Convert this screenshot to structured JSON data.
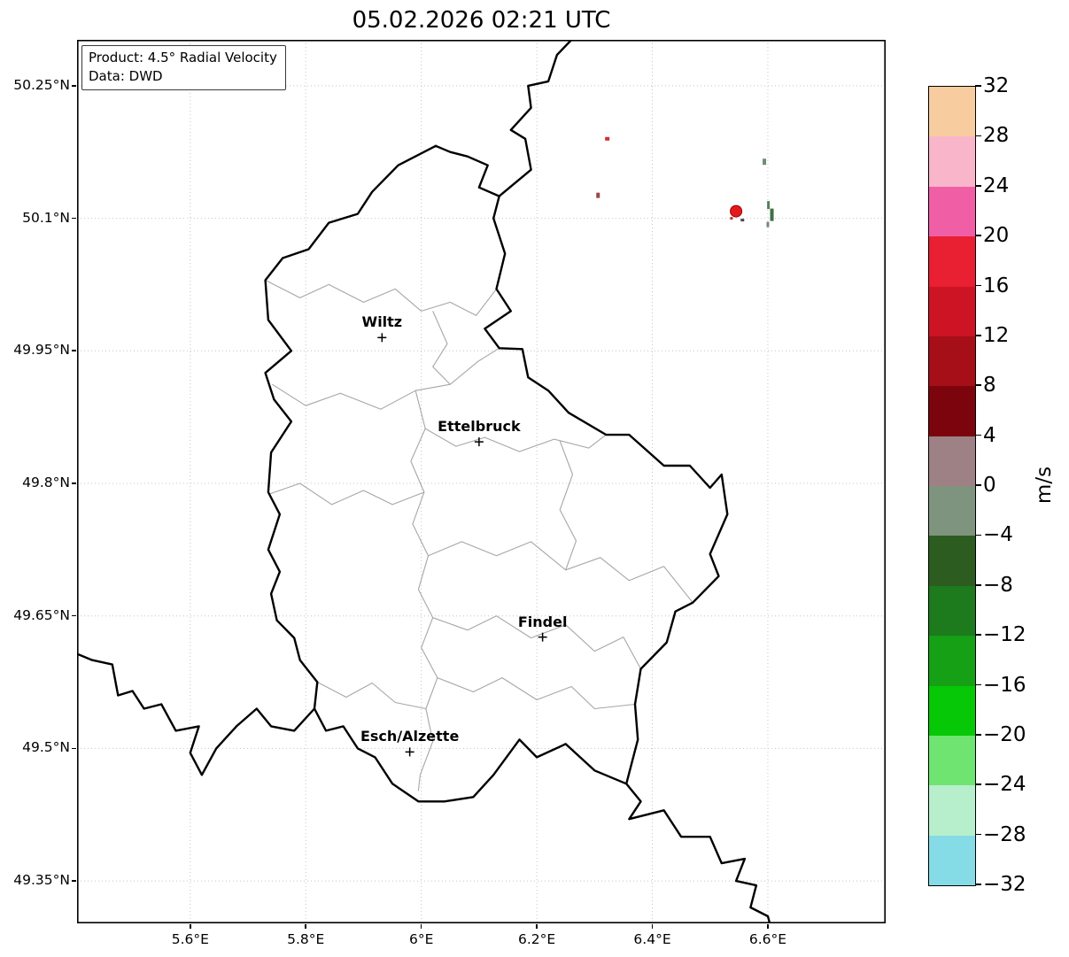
{
  "title": "05.02.2026 02:21 UTC",
  "annotation": {
    "product": "Product: 4.5° Radial Velocity",
    "data_source": "Data: DWD"
  },
  "chart_data": {
    "type": "heatmap",
    "subtype": "radar-radial-velocity-map",
    "title": "05.02.2026 02:21 UTC",
    "units": "m/s",
    "grid": true,
    "background": "#ffffff",
    "lon_range": [
      5.404,
      6.804
    ],
    "lat_range": [
      49.302,
      50.302
    ],
    "x_ticks": [
      {
        "lon": 5.6,
        "label": "5.6°E"
      },
      {
        "lon": 5.8,
        "label": "5.8°E"
      },
      {
        "lon": 6.0,
        "label": "6°E"
      },
      {
        "lon": 6.2,
        "label": "6.2°E"
      },
      {
        "lon": 6.4,
        "label": "6.4°E"
      },
      {
        "lon": 6.6,
        "label": "6.6°E"
      }
    ],
    "y_ticks": [
      {
        "lat": 50.25,
        "label": "50.25°N"
      },
      {
        "lat": 50.1,
        "label": "50.1°N"
      },
      {
        "lat": 49.95,
        "label": "49.95°N"
      },
      {
        "lat": 49.8,
        "label": "49.8°N"
      },
      {
        "lat": 49.65,
        "label": "49.65°N"
      },
      {
        "lat": 49.5,
        "label": "49.5°N"
      },
      {
        "lat": 49.35,
        "label": "49.35°N"
      }
    ],
    "colorbar": {
      "label": "m/s",
      "min": -32,
      "max": 32,
      "tick_step": 4,
      "tick_labels": [
        "32",
        "28",
        "24",
        "20",
        "16",
        "12",
        "8",
        "4",
        "0",
        "−4",
        "−8",
        "−12",
        "−16",
        "−20",
        "−24",
        "−28",
        "−32"
      ],
      "band_colors_top_to_bottom": [
        "#f7cda0",
        "#f9b6cb",
        "#f05fa6",
        "#e82031",
        "#cd1424",
        "#a60f18",
        "#7c050d",
        "#9d8184",
        "#7f947f",
        "#2c5c20",
        "#1d7a1d",
        "#15a015",
        "#06c806",
        "#70e470",
        "#b7efcd",
        "#85dbe6"
      ]
    },
    "cities": [
      {
        "name": "Wiltz",
        "lon": 5.932,
        "lat": 49.965
      },
      {
        "name": "Ettelbruck",
        "lon": 6.1,
        "lat": 49.847
      },
      {
        "name": "Findel",
        "lon": 6.21,
        "lat": 49.626
      },
      {
        "name": "Esch/Alzette",
        "lon": 5.98,
        "lat": 49.496
      }
    ],
    "country_borders": [
      [
        [
          6.025,
          50.182
        ],
        [
          6.05,
          50.175
        ],
        [
          6.08,
          50.17
        ],
        [
          6.115,
          50.16
        ],
        [
          6.1,
          50.135
        ],
        [
          6.135,
          50.125
        ],
        [
          6.125,
          50.1
        ],
        [
          6.145,
          50.06
        ],
        [
          6.13,
          50.02
        ],
        [
          6.155,
          49.995
        ],
        [
          6.11,
          49.975
        ],
        [
          6.135,
          49.953
        ],
        [
          6.175,
          49.952
        ],
        [
          6.185,
          49.92
        ],
        [
          6.22,
          49.905
        ],
        [
          6.255,
          49.88
        ],
        [
          6.32,
          49.855
        ],
        [
          6.36,
          49.855
        ],
        [
          6.42,
          49.82
        ],
        [
          6.465,
          49.82
        ],
        [
          6.5,
          49.795
        ],
        [
          6.52,
          49.81
        ],
        [
          6.53,
          49.765
        ],
        [
          6.5,
          49.72
        ],
        [
          6.515,
          49.695
        ],
        [
          6.47,
          49.665
        ],
        [
          6.44,
          49.655
        ],
        [
          6.425,
          49.62
        ],
        [
          6.38,
          49.59
        ],
        [
          6.37,
          49.55
        ],
        [
          6.375,
          49.51
        ],
        [
          6.355,
          49.46
        ],
        [
          6.3,
          49.475
        ],
        [
          6.25,
          49.505
        ],
        [
          6.2,
          49.49
        ],
        [
          6.17,
          49.51
        ],
        [
          6.125,
          49.47
        ],
        [
          6.09,
          49.445
        ],
        [
          6.04,
          49.44
        ],
        [
          5.995,
          49.44
        ],
        [
          5.95,
          49.46
        ],
        [
          5.92,
          49.49
        ],
        [
          5.89,
          49.5
        ],
        [
          5.865,
          49.525
        ],
        [
          5.835,
          49.52
        ],
        [
          5.815,
          49.545
        ],
        [
          5.82,
          49.575
        ],
        [
          5.79,
          49.6
        ],
        [
          5.78,
          49.625
        ],
        [
          5.75,
          49.645
        ],
        [
          5.74,
          49.675
        ],
        [
          5.755,
          49.7
        ],
        [
          5.735,
          49.725
        ],
        [
          5.755,
          49.765
        ],
        [
          5.735,
          49.79
        ],
        [
          5.74,
          49.835
        ],
        [
          5.775,
          49.87
        ],
        [
          5.745,
          49.895
        ],
        [
          5.73,
          49.925
        ],
        [
          5.775,
          49.95
        ],
        [
          5.735,
          49.985
        ],
        [
          5.73,
          50.03
        ],
        [
          5.76,
          50.055
        ],
        [
          5.805,
          50.065
        ],
        [
          5.84,
          50.095
        ],
        [
          5.89,
          50.105
        ],
        [
          5.915,
          50.13
        ],
        [
          5.96,
          50.16
        ],
        [
          6.025,
          50.182
        ]
      ],
      [
        [
          6.135,
          50.125
        ],
        [
          6.19,
          50.155
        ],
        [
          6.18,
          50.19
        ],
        [
          6.155,
          50.2
        ],
        [
          6.19,
          50.225
        ],
        [
          6.185,
          50.25
        ],
        [
          6.22,
          50.255
        ],
        [
          6.235,
          50.285
        ],
        [
          6.26,
          50.302
        ]
      ],
      [
        [
          6.355,
          49.46
        ],
        [
          6.38,
          49.44
        ],
        [
          6.36,
          49.42
        ],
        [
          6.42,
          49.43
        ],
        [
          6.45,
          49.4
        ],
        [
          6.5,
          49.4
        ],
        [
          6.52,
          49.37
        ],
        [
          6.56,
          49.375
        ],
        [
          6.545,
          49.35
        ],
        [
          6.58,
          49.345
        ],
        [
          6.57,
          49.32
        ],
        [
          6.6,
          49.31
        ],
        [
          6.605,
          49.298
        ]
      ],
      [
        [
          5.815,
          49.545
        ],
        [
          5.78,
          49.52
        ],
        [
          5.74,
          49.525
        ],
        [
          5.715,
          49.545
        ],
        [
          5.68,
          49.525
        ],
        [
          5.645,
          49.5
        ],
        [
          5.62,
          49.47
        ],
        [
          5.6,
          49.495
        ],
        [
          5.615,
          49.525
        ],
        [
          5.575,
          49.52
        ],
        [
          5.55,
          49.55
        ],
        [
          5.52,
          49.545
        ],
        [
          5.5,
          49.565
        ],
        [
          5.475,
          49.56
        ],
        [
          5.465,
          49.595
        ],
        [
          5.43,
          49.6
        ],
        [
          5.404,
          49.607
        ]
      ]
    ],
    "region_borders": [
      [
        [
          5.73,
          50.03
        ],
        [
          5.79,
          50.01
        ],
        [
          5.84,
          50.025
        ],
        [
          5.9,
          50.005
        ],
        [
          5.955,
          50.02
        ],
        [
          6.0,
          49.995
        ],
        [
          6.05,
          50.005
        ],
        [
          6.095,
          49.99
        ],
        [
          6.13,
          50.02
        ]
      ],
      [
        [
          5.742,
          49.912
        ],
        [
          5.8,
          49.888
        ],
        [
          5.86,
          49.902
        ],
        [
          5.93,
          49.884
        ],
        [
          5.99,
          49.905
        ],
        [
          6.05,
          49.912
        ],
        [
          6.098,
          49.938
        ],
        [
          6.135,
          49.953
        ]
      ],
      [
        [
          6.02,
          49.995
        ],
        [
          6.045,
          49.958
        ],
        [
          6.02,
          49.932
        ],
        [
          6.05,
          49.912
        ]
      ],
      [
        [
          5.99,
          49.905
        ],
        [
          6.007,
          49.862
        ],
        [
          5.982,
          49.825
        ],
        [
          6.005,
          49.79
        ],
        [
          5.985,
          49.754
        ],
        [
          6.012,
          49.718
        ],
        [
          5.995,
          49.68
        ],
        [
          6.02,
          49.648
        ],
        [
          6.0,
          49.614
        ],
        [
          6.028,
          49.58
        ],
        [
          6.008,
          49.545
        ],
        [
          6.02,
          49.508
        ],
        [
          5.998,
          49.47
        ],
        [
          5.995,
          49.452
        ]
      ],
      [
        [
          5.737,
          49.788
        ],
        [
          5.79,
          49.8
        ],
        [
          5.845,
          49.776
        ],
        [
          5.9,
          49.792
        ],
        [
          5.95,
          49.776
        ],
        [
          6.005,
          49.79
        ]
      ],
      [
        [
          6.007,
          49.862
        ],
        [
          6.06,
          49.842
        ],
        [
          6.11,
          49.852
        ],
        [
          6.17,
          49.836
        ],
        [
          6.23,
          49.85
        ],
        [
          6.29,
          49.84
        ],
        [
          6.32,
          49.855
        ]
      ],
      [
        [
          6.24,
          49.848
        ],
        [
          6.262,
          49.81
        ],
        [
          6.24,
          49.77
        ],
        [
          6.268,
          49.735
        ],
        [
          6.25,
          49.702
        ]
      ],
      [
        [
          6.012,
          49.718
        ],
        [
          6.07,
          49.734
        ],
        [
          6.13,
          49.718
        ],
        [
          6.19,
          49.734
        ],
        [
          6.25,
          49.702
        ],
        [
          6.31,
          49.716
        ],
        [
          6.36,
          49.69
        ],
        [
          6.42,
          49.706
        ],
        [
          6.47,
          49.665
        ]
      ],
      [
        [
          6.02,
          49.648
        ],
        [
          6.08,
          49.634
        ],
        [
          6.13,
          49.65
        ],
        [
          6.19,
          49.625
        ],
        [
          6.25,
          49.64
        ],
        [
          6.3,
          49.61
        ],
        [
          6.35,
          49.626
        ],
        [
          6.38,
          49.59
        ]
      ],
      [
        [
          6.028,
          49.58
        ],
        [
          6.09,
          49.564
        ],
        [
          6.14,
          49.58
        ],
        [
          6.2,
          49.555
        ],
        [
          6.26,
          49.57
        ],
        [
          6.3,
          49.545
        ],
        [
          6.37,
          49.55
        ]
      ],
      [
        [
          5.82,
          49.575
        ],
        [
          5.87,
          49.558
        ],
        [
          5.915,
          49.574
        ],
        [
          5.955,
          49.552
        ],
        [
          6.008,
          49.545
        ]
      ]
    ],
    "echoes": [
      {
        "shape": "rect",
        "lon": 6.322,
        "lat": 50.19,
        "w": 5,
        "h": 4,
        "color": "#d03030",
        "value_ms": 14
      },
      {
        "shape": "rect",
        "lon": 6.594,
        "lat": 50.164,
        "w": 4,
        "h": 7,
        "color": "#6d8d77",
        "value_ms": -2
      },
      {
        "shape": "rect",
        "lon": 6.306,
        "lat": 50.126,
        "w": 4,
        "h": 6,
        "color": "#9a4848",
        "value_ms": 5
      },
      {
        "shape": "circle",
        "lon": 6.545,
        "lat": 50.108,
        "r": 6.5,
        "color": "#e31a1c",
        "stroke": "#9a0007",
        "value_ms": 20
      },
      {
        "shape": "rect",
        "lon": 6.537,
        "lat": 50.1,
        "w": 3,
        "h": 3,
        "color": "#c03030",
        "value_ms": 14
      },
      {
        "shape": "rect",
        "lon": 6.556,
        "lat": 50.098,
        "w": 4,
        "h": 3,
        "color": "#4a4a4a",
        "value_ms": 1
      },
      {
        "shape": "rect",
        "lon": 6.601,
        "lat": 50.115,
        "w": 3,
        "h": 9,
        "color": "#567f5e",
        "value_ms": -3
      },
      {
        "shape": "rect",
        "lon": 6.607,
        "lat": 50.104,
        "w": 4,
        "h": 14,
        "color": "#3f6f49",
        "value_ms": -4
      },
      {
        "shape": "rect",
        "lon": 6.6,
        "lat": 50.093,
        "w": 3,
        "h": 6,
        "color": "#6d8d77",
        "value_ms": -2
      }
    ]
  }
}
